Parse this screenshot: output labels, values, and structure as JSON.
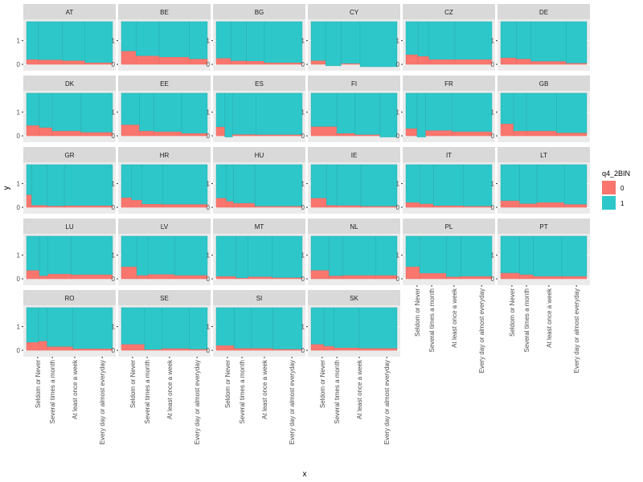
{
  "chart_data": {
    "type": "bar",
    "xlabel": "x",
    "ylabel": "y",
    "y_ticks": [
      "0",
      "1"
    ],
    "ylim": [
      -0.2,
      1.9
    ],
    "categories": [
      "Seldom or Never",
      "Several times a month",
      "At least once a week",
      "Every day or almost everyday"
    ],
    "legend": {
      "title": "q4_2BIN",
      "position": "right",
      "entries": [
        {
          "label": "0",
          "color": "#F8766D"
        },
        {
          "label": "1",
          "color": "#2EC7C9"
        }
      ]
    },
    "colors": {
      "zero": "#F8766D",
      "one": "#2EC7C9",
      "panel": "#EBEBEB",
      "strip": "#D9D9D9",
      "grid": "#FFFFFF"
    },
    "facets": [
      {
        "label": "AT",
        "widths": [
          0.14,
          0.28,
          0.26,
          0.32
        ],
        "zero": [
          0.2,
          0.18,
          0.15,
          0.06
        ]
      },
      {
        "label": "BE",
        "widths": [
          0.17,
          0.27,
          0.35,
          0.21
        ],
        "zero": [
          0.55,
          0.35,
          0.3,
          0.22
        ]
      },
      {
        "label": "BG",
        "widths": [
          0.17,
          0.18,
          0.21,
          0.44
        ],
        "zero": [
          0.25,
          0.14,
          0.13,
          0.06
        ]
      },
      {
        "label": "CY",
        "widths": [
          0.17,
          0.18,
          0.22,
          0.43
        ],
        "zero": [
          0.15,
          -0.06,
          0.03,
          -0.1
        ]
      },
      {
        "label": "CZ",
        "widths": [
          0.14,
          0.13,
          0.3,
          0.43
        ],
        "zero": [
          0.4,
          0.33,
          0.2,
          0.2
        ]
      },
      {
        "label": "DE",
        "widths": [
          0.18,
          0.17,
          0.41,
          0.24
        ],
        "zero": [
          0.27,
          0.22,
          0.12,
          0.04
        ]
      },
      {
        "label": "DK",
        "widths": [
          0.15,
          0.15,
          0.33,
          0.37
        ],
        "zero": [
          0.43,
          0.34,
          0.2,
          0.14
        ]
      },
      {
        "label": "EE",
        "widths": [
          0.21,
          0.17,
          0.32,
          0.3
        ],
        "zero": [
          0.46,
          0.2,
          0.17,
          0.1
        ]
      },
      {
        "label": "ES",
        "widths": [
          0.1,
          0.09,
          0.27,
          0.54
        ],
        "zero": [
          0.37,
          -0.05,
          0.05,
          0.04
        ]
      },
      {
        "label": "FI",
        "widths": [
          0.3,
          0.21,
          0.29,
          0.2
        ],
        "zero": [
          0.38,
          0.1,
          0.04,
          -0.05
        ]
      },
      {
        "label": "FR",
        "widths": [
          0.13,
          0.1,
          0.31,
          0.46
        ],
        "zero": [
          0.3,
          -0.05,
          0.22,
          0.17
        ]
      },
      {
        "label": "GB",
        "widths": [
          0.15,
          0.15,
          0.35,
          0.35
        ],
        "zero": [
          0.5,
          0.2,
          0.2,
          0.12
        ]
      },
      {
        "label": "GR",
        "widths": [
          0.06,
          0.18,
          0.2,
          0.56
        ],
        "zero": [
          0.52,
          0.08,
          0.05,
          0.06
        ]
      },
      {
        "label": "HR",
        "widths": [
          0.12,
          0.12,
          0.24,
          0.52
        ],
        "zero": [
          0.4,
          0.3,
          0.13,
          0.12
        ]
      },
      {
        "label": "HU",
        "widths": [
          0.12,
          0.08,
          0.25,
          0.55
        ],
        "zero": [
          0.38,
          0.25,
          0.17,
          0.04
        ]
      },
      {
        "label": "IE",
        "widths": [
          0.18,
          0.12,
          0.28,
          0.42
        ],
        "zero": [
          0.38,
          0.08,
          0.07,
          0.04
        ]
      },
      {
        "label": "IT",
        "widths": [
          0.16,
          0.16,
          0.35,
          0.33
        ],
        "zero": [
          0.2,
          0.14,
          0.06,
          0.04
        ]
      },
      {
        "label": "LT",
        "widths": [
          0.22,
          0.2,
          0.32,
          0.26
        ],
        "zero": [
          0.27,
          0.15,
          0.2,
          0.12
        ]
      },
      {
        "label": "LU",
        "widths": [
          0.15,
          0.1,
          0.27,
          0.48
        ],
        "zero": [
          0.35,
          0.12,
          0.2,
          0.17
        ]
      },
      {
        "label": "LV",
        "widths": [
          0.18,
          0.13,
          0.31,
          0.38
        ],
        "zero": [
          0.5,
          0.14,
          0.18,
          0.14
        ]
      },
      {
        "label": "MT",
        "widths": [
          0.23,
          0.14,
          0.28,
          0.35
        ],
        "zero": [
          0.1,
          0.03,
          0.08,
          0.04
        ]
      },
      {
        "label": "NL",
        "widths": [
          0.21,
          0.16,
          0.38,
          0.25
        ],
        "zero": [
          0.35,
          0.12,
          0.14,
          0.14
        ]
      },
      {
        "label": "PL",
        "widths": [
          0.16,
          0.31,
          0.17,
          0.36
        ],
        "zero": [
          0.5,
          0.23,
          0.08,
          0.1
        ]
      },
      {
        "label": "PT",
        "widths": [
          0.22,
          0.16,
          0.33,
          0.29
        ],
        "zero": [
          0.24,
          0.17,
          0.1,
          0.1
        ]
      },
      {
        "label": "RO",
        "widths": [
          0.14,
          0.1,
          0.3,
          0.46
        ],
        "zero": [
          0.33,
          0.38,
          0.15,
          0.06
        ]
      },
      {
        "label": "SE",
        "widths": [
          0.27,
          0.2,
          0.32,
          0.21
        ],
        "zero": [
          0.25,
          0.03,
          0.07,
          0.04
        ]
      },
      {
        "label": "SI",
        "widths": [
          0.21,
          0.2,
          0.25,
          0.34
        ],
        "zero": [
          0.2,
          0.08,
          0.08,
          0.04
        ]
      },
      {
        "label": "SK",
        "widths": [
          0.15,
          0.12,
          0.29,
          0.44
        ],
        "zero": [
          0.25,
          0.17,
          0.1,
          0.08
        ]
      }
    ]
  }
}
